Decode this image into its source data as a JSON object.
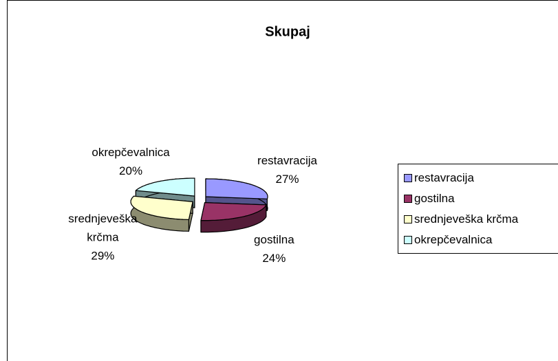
{
  "chart_data": {
    "type": "pie",
    "title": "Skupaj",
    "categories": [
      "restavracija",
      "gostilna",
      "srednjeveška krčma",
      "okrepčevalnica"
    ],
    "values": [
      27,
      24,
      29,
      20
    ],
    "value_labels": [
      "27%",
      "24%",
      "29%",
      "20%"
    ],
    "colors": [
      "#9999ff",
      "#993366",
      "#ffffcc",
      "#ccffff"
    ],
    "legend": "right"
  }
}
